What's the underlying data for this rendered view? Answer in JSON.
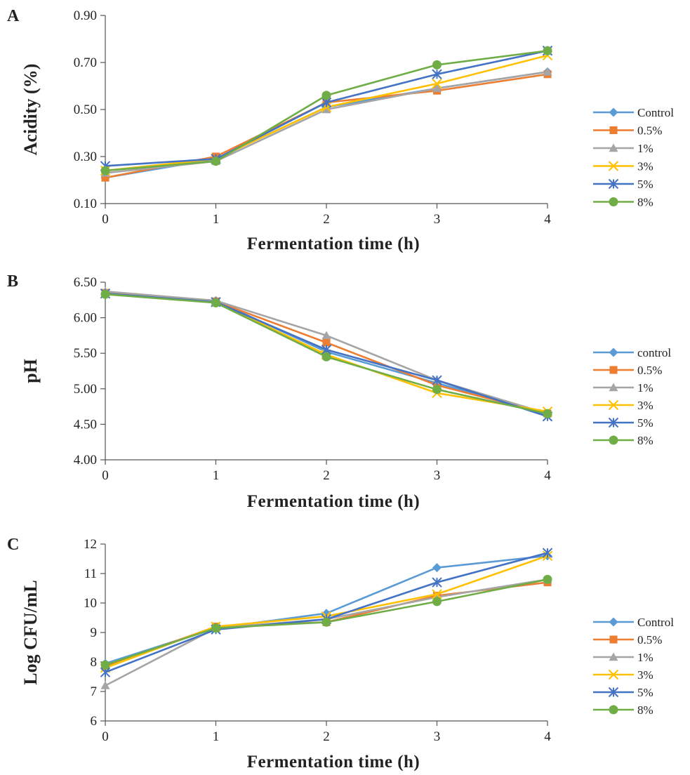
{
  "chart_data": [
    {
      "panel": "A",
      "type": "line",
      "xlabel": "Fermentation time (h)",
      "ylabel": "Acidity (%)",
      "x": [
        0,
        1,
        2,
        3,
        4
      ],
      "xlim": [
        0,
        4
      ],
      "ylim": [
        0.1,
        0.9
      ],
      "yticks": [
        "0.10",
        "0.30",
        "0.50",
        "0.70",
        "0.90"
      ],
      "xticks": [
        "0",
        "1",
        "2",
        "3",
        "4"
      ],
      "grid": false,
      "legend": "right",
      "series": [
        {
          "name": "Control",
          "color": "#5b9bd5",
          "marker": "diamond",
          "values": [
            0.21,
            0.29,
            0.51,
            0.59,
            0.66
          ]
        },
        {
          "name": "0.5%",
          "color": "#ed7d31",
          "marker": "square",
          "values": [
            0.21,
            0.3,
            0.53,
            0.58,
            0.65
          ]
        },
        {
          "name": "1%",
          "color": "#a5a5a5",
          "marker": "triangle",
          "values": [
            0.23,
            0.28,
            0.5,
            0.59,
            0.66
          ]
        },
        {
          "name": "3%",
          "color": "#ffc000",
          "marker": "x",
          "values": [
            0.24,
            0.29,
            0.51,
            0.61,
            0.73
          ]
        },
        {
          "name": "5%",
          "color": "#4472c4",
          "marker": "asterisk",
          "values": [
            0.26,
            0.29,
            0.53,
            0.65,
            0.75
          ]
        },
        {
          "name": "8%",
          "color": "#70ad47",
          "marker": "circle",
          "values": [
            0.24,
            0.28,
            0.56,
            0.69,
            0.75
          ]
        }
      ]
    },
    {
      "panel": "B",
      "type": "line",
      "xlabel": "Fermentation time (h)",
      "ylabel": "pH",
      "x": [
        0,
        1,
        2,
        3,
        4
      ],
      "xlim": [
        0,
        4
      ],
      "ylim": [
        4.0,
        6.5
      ],
      "yticks": [
        "4.00",
        "4.50",
        "5.00",
        "5.50",
        "6.00",
        "6.50"
      ],
      "xticks": [
        "0",
        "1",
        "2",
        "3",
        "4"
      ],
      "grid": false,
      "legend": "right",
      "series": [
        {
          "name": "control",
          "color": "#5b9bd5",
          "marker": "diamond",
          "values": [
            6.35,
            6.24,
            5.52,
            5.08,
            4.64
          ]
        },
        {
          "name": "0.5%",
          "color": "#ed7d31",
          "marker": "square",
          "values": [
            6.35,
            6.23,
            5.65,
            5.05,
            4.65
          ]
        },
        {
          "name": "1%",
          "color": "#a5a5a5",
          "marker": "triangle",
          "values": [
            6.37,
            6.24,
            5.75,
            5.12,
            4.65
          ]
        },
        {
          "name": "3%",
          "color": "#ffc000",
          "marker": "x",
          "values": [
            6.34,
            6.22,
            5.48,
            4.94,
            4.68
          ]
        },
        {
          "name": "5%",
          "color": "#4472c4",
          "marker": "asterisk",
          "values": [
            6.34,
            6.22,
            5.55,
            5.12,
            4.61
          ]
        },
        {
          "name": "8%",
          "color": "#70ad47",
          "marker": "circle",
          "values": [
            6.33,
            6.21,
            5.45,
            4.99,
            4.65
          ]
        }
      ]
    },
    {
      "panel": "C",
      "type": "line",
      "xlabel": "Fermentation time (h)",
      "ylabel": "Log CFU/mL",
      "x": [
        0,
        1,
        2,
        3,
        4
      ],
      "xlim": [
        0,
        4
      ],
      "ylim": [
        6,
        12
      ],
      "yticks": [
        "6",
        "7",
        "8",
        "9",
        "10",
        "11",
        "12"
      ],
      "xticks": [
        "0",
        "1",
        "2",
        "3",
        "4"
      ],
      "grid": false,
      "legend": "right",
      "series": [
        {
          "name": "Control",
          "color": "#5b9bd5",
          "marker": "diamond",
          "values": [
            7.95,
            9.15,
            9.65,
            11.2,
            11.6
          ]
        },
        {
          "name": "0.5%",
          "color": "#ed7d31",
          "marker": "square",
          "values": [
            7.85,
            9.2,
            9.35,
            10.25,
            10.7
          ]
        },
        {
          "name": "1%",
          "color": "#a5a5a5",
          "marker": "triangle",
          "values": [
            7.2,
            9.15,
            9.45,
            10.2,
            10.8
          ]
        },
        {
          "name": "3%",
          "color": "#ffc000",
          "marker": "x",
          "values": [
            7.8,
            9.2,
            9.55,
            10.3,
            11.6
          ]
        },
        {
          "name": "5%",
          "color": "#4472c4",
          "marker": "asterisk",
          "values": [
            7.65,
            9.1,
            9.45,
            10.7,
            11.7
          ]
        },
        {
          "name": "8%",
          "color": "#70ad47",
          "marker": "circle",
          "values": [
            7.9,
            9.15,
            9.35,
            10.05,
            10.8
          ]
        }
      ]
    }
  ]
}
